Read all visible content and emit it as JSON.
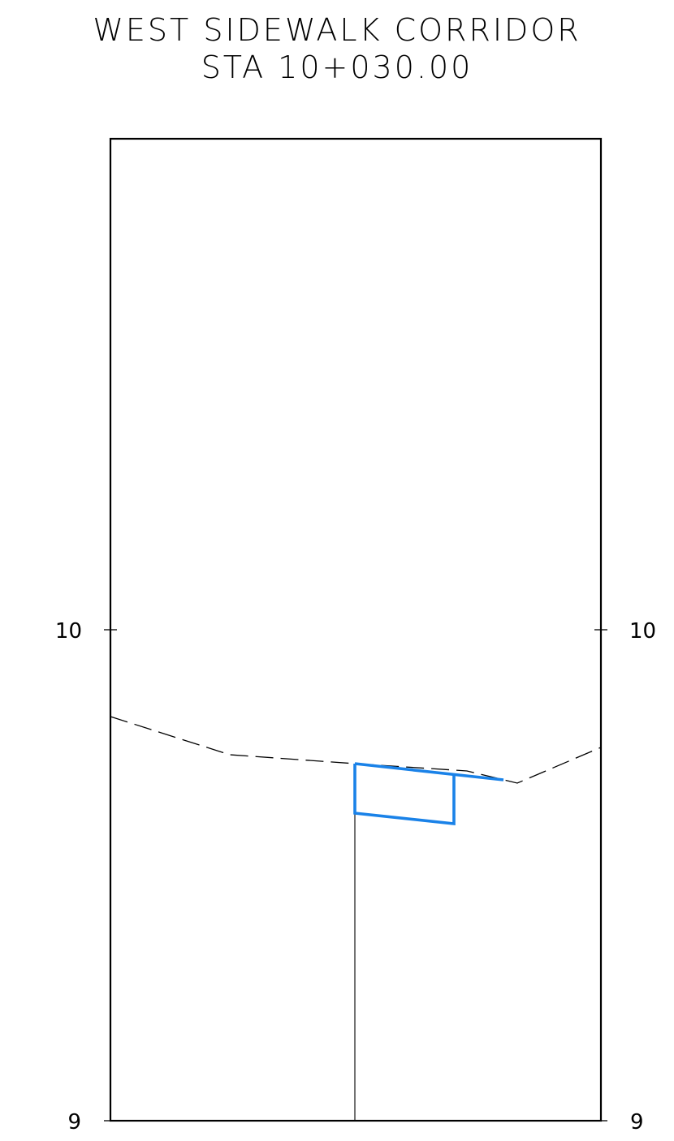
{
  "section": {
    "title": "WEST SIDEWALK CORRIDOR",
    "station": "STA 10+030.00"
  },
  "axes": {
    "left": [
      "10",
      "9"
    ],
    "right": [
      "10",
      "9"
    ],
    "elev_min": 9,
    "elev_max": 11,
    "grid": false
  },
  "colors": {
    "frame": "#000000",
    "ground_line": "#000000",
    "sidewalk": "#1a82e8"
  },
  "linetypes": {
    "ground": "dashed",
    "sidewalk": "solid"
  }
}
